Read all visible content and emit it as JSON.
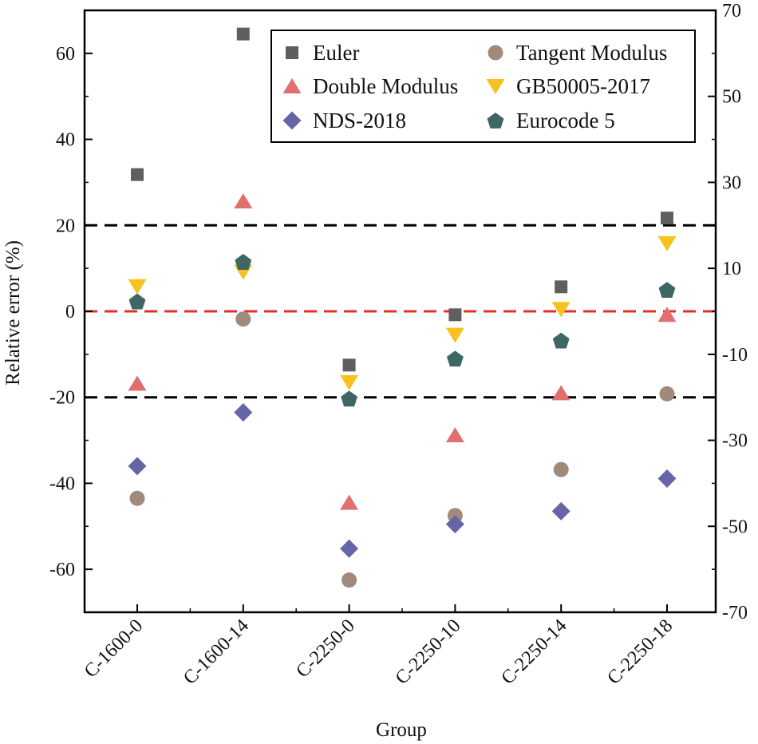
{
  "chart_data": {
    "type": "scatter",
    "xlabel": "Group",
    "ylabel": "Relative error (%)",
    "categories": [
      "C-1600-0",
      "C-1600-14",
      "C-2250-0",
      "C-2250-10",
      "C-2250-14",
      "C-2250-18"
    ],
    "ylim": [
      -70,
      70
    ],
    "left_yticks": [
      60,
      40,
      20,
      0,
      -20,
      -40,
      -60
    ],
    "right_yticks": [
      70,
      50,
      30,
      10,
      -10,
      -30,
      -50,
      -70
    ],
    "reference_lines": [
      {
        "y": 20,
        "style": "dashed",
        "color": "#000000"
      },
      {
        "y": 0,
        "style": "dashed",
        "color": "#e0302a"
      },
      {
        "y": -20,
        "style": "dashed",
        "color": "#000000"
      }
    ],
    "series": [
      {
        "name": "Euler",
        "marker": "square",
        "color": "#5f5f5f",
        "values": [
          31.8,
          64.5,
          -12.5,
          -0.8,
          5.7,
          21.7
        ]
      },
      {
        "name": "Tangent Modulus",
        "marker": "circle",
        "color": "#a08a7c",
        "values": [
          -43.5,
          -1.8,
          -62.5,
          -47.5,
          -36.8,
          -19.2
        ]
      },
      {
        "name": "Double Modulus",
        "marker": "triangle-up",
        "color": "#e07070",
        "values": [
          -16.8,
          25.6,
          -44.5,
          -28.8,
          -19.0,
          -0.8
        ]
      },
      {
        "name": "GB50005-2017",
        "marker": "triangle-down",
        "color": "#f7c21e",
        "values": [
          5.8,
          9.2,
          -16.5,
          -5.5,
          0.5,
          15.8
        ]
      },
      {
        "name": "NDS-2018",
        "marker": "diamond",
        "color": "#6565a8",
        "values": [
          -36.0,
          -23.5,
          -55.2,
          -49.5,
          -46.5,
          -38.9
        ]
      },
      {
        "name": "Eurocode 5",
        "marker": "pentagon",
        "color": "#3e6664",
        "values": [
          2.3,
          11.5,
          -20.3,
          -11.0,
          -6.8,
          5.0
        ]
      }
    ],
    "legend": {
      "placement": "top-right",
      "columns": 2,
      "order": [
        "Euler",
        "Tangent Modulus",
        "Double Modulus",
        "GB50005-2017",
        "NDS-2018",
        "Eurocode 5"
      ]
    }
  }
}
